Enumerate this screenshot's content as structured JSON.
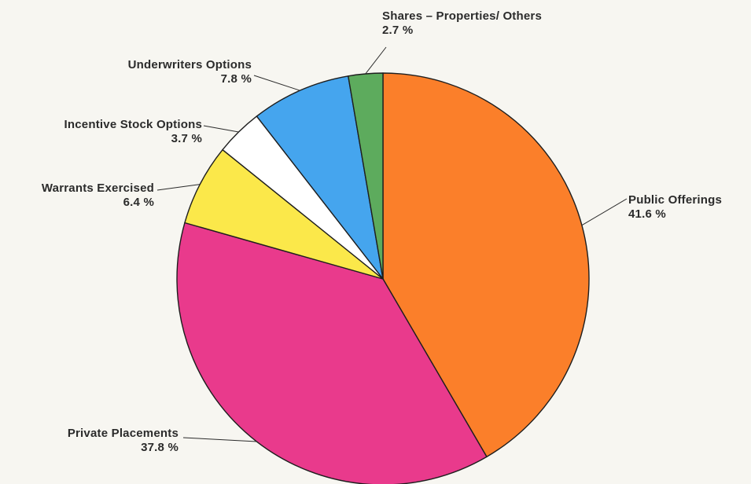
{
  "chart_data": {
    "type": "pie",
    "title": "",
    "slices": [
      {
        "label": "Public Offerings",
        "value": 41.6,
        "value_label": "41.6 %",
        "color": "#fb7f2a"
      },
      {
        "label": "Private Placements",
        "value": 37.8,
        "value_label": "37.8 %",
        "color": "#e93a8c"
      },
      {
        "label": "Warrants Exercised",
        "value": 6.4,
        "value_label": "6.4 %",
        "color": "#fbe84a"
      },
      {
        "label": "Incentive Stock Options",
        "value": 3.7,
        "value_label": "3.7 %",
        "color": "#ffffff"
      },
      {
        "label": "Underwriters Options",
        "value": 7.8,
        "value_label": "7.8 %",
        "color": "#45a5ee"
      },
      {
        "label": "Shares – Properties/ Others",
        "value": 2.7,
        "value_label": "2.7 %",
        "color": "#5dab5d"
      }
    ],
    "start": "12 o'clock",
    "direction": "clockwise"
  }
}
